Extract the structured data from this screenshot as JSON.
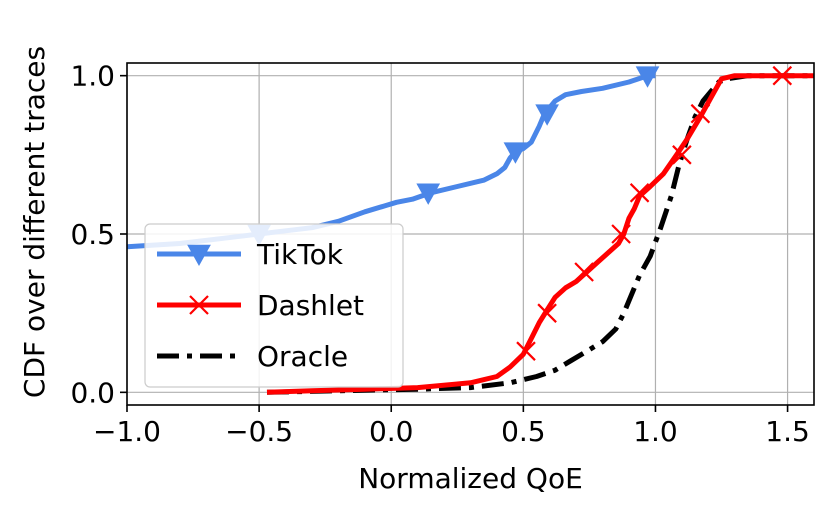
{
  "chart_data": {
    "type": "line",
    "title": "",
    "xlabel": "Normalized QoE",
    "ylabel": "CDF over different traces",
    "xlim": [
      -1.0,
      1.6
    ],
    "ylim": [
      -0.04,
      1.04
    ],
    "xticks": [
      -1.0,
      -0.5,
      0.0,
      0.5,
      1.0,
      1.5
    ],
    "xtick_labels": [
      "−1.0",
      "−0.5",
      "0.0",
      "0.5",
      "1.0",
      "1.5"
    ],
    "yticks": [
      0.0,
      0.5,
      1.0
    ],
    "ytick_labels": [
      "0.0",
      "0.5",
      "1.0"
    ],
    "grid": true,
    "legend_position": "center-left",
    "series": [
      {
        "name": "TikTok",
        "color": "#4a86e8",
        "marker": "triangle-down",
        "linestyle": "solid",
        "x": [
          -1.0,
          -0.8,
          -0.6,
          -0.5,
          -0.4,
          -0.3,
          -0.2,
          -0.1,
          -0.02,
          0.02,
          0.08,
          0.15,
          0.25,
          0.35,
          0.4,
          0.43,
          0.45,
          0.47,
          0.5,
          0.53,
          0.56,
          0.58,
          0.62,
          0.66,
          0.72,
          0.8,
          0.9,
          0.97,
          1.0
        ],
        "y": [
          0.46,
          0.47,
          0.49,
          0.5,
          0.51,
          0.52,
          0.54,
          0.57,
          0.59,
          0.6,
          0.61,
          0.63,
          0.65,
          0.67,
          0.69,
          0.71,
          0.74,
          0.76,
          0.77,
          0.79,
          0.84,
          0.88,
          0.92,
          0.94,
          0.95,
          0.96,
          0.98,
          1.0,
          1.0
        ],
        "markers_x": [
          -0.5,
          0.14,
          0.47,
          0.59,
          0.97
        ],
        "markers_y": [
          0.5,
          0.63,
          0.76,
          0.88,
          1.0
        ]
      },
      {
        "name": "Dashlet",
        "color": "#ff0000",
        "marker": "x",
        "linestyle": "solid",
        "x": [
          -0.47,
          -0.3,
          -0.1,
          0.1,
          0.3,
          0.4,
          0.45,
          0.5,
          0.53,
          0.56,
          0.59,
          0.62,
          0.66,
          0.7,
          0.74,
          0.78,
          0.82,
          0.86,
          0.88,
          0.9,
          0.92,
          0.94,
          0.98,
          1.03,
          1.08,
          1.12,
          1.17,
          1.21,
          1.25,
          1.3,
          1.4,
          1.48,
          1.6
        ],
        "y": [
          0.0,
          0.005,
          0.01,
          0.015,
          0.03,
          0.05,
          0.08,
          0.12,
          0.17,
          0.22,
          0.26,
          0.3,
          0.33,
          0.35,
          0.38,
          0.41,
          0.44,
          0.47,
          0.5,
          0.55,
          0.58,
          0.62,
          0.65,
          0.69,
          0.75,
          0.8,
          0.87,
          0.93,
          0.99,
          1.0,
          1.0,
          1.0,
          1.0
        ],
        "markers_x": [
          0.51,
          0.59,
          0.73,
          0.87,
          0.94,
          1.1,
          1.17,
          1.48
        ],
        "markers_y": [
          0.13,
          0.25,
          0.38,
          0.5,
          0.63,
          0.75,
          0.88,
          1.0
        ]
      },
      {
        "name": "Oracle",
        "color": "#000000",
        "marker": "none",
        "linestyle": "dashdot",
        "x": [
          -0.47,
          -0.2,
          0.1,
          0.3,
          0.45,
          0.55,
          0.62,
          0.68,
          0.74,
          0.8,
          0.85,
          0.88,
          0.91,
          0.94,
          0.98,
          1.02,
          1.06,
          1.09,
          1.12,
          1.15,
          1.18,
          1.21,
          1.24,
          1.27,
          1.35,
          1.45,
          1.6
        ],
        "y": [
          0.0,
          0.005,
          0.01,
          0.015,
          0.03,
          0.05,
          0.07,
          0.1,
          0.13,
          0.16,
          0.2,
          0.25,
          0.31,
          0.37,
          0.43,
          0.52,
          0.62,
          0.72,
          0.8,
          0.87,
          0.92,
          0.95,
          0.98,
          0.99,
          1.0,
          1.0,
          1.0
        ]
      }
    ]
  }
}
